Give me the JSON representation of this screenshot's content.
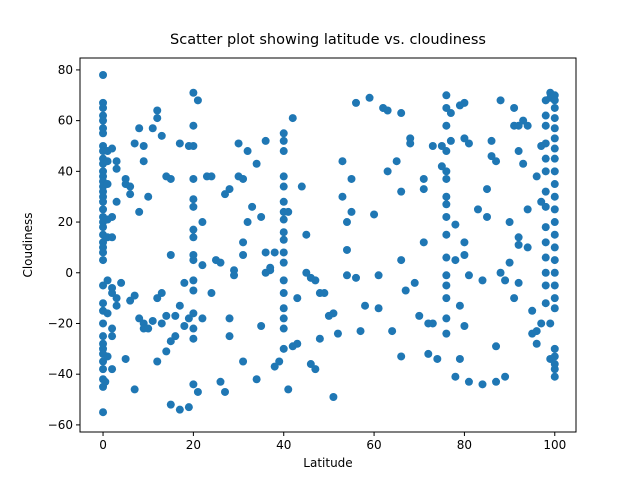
{
  "chart_data": {
    "type": "scatter",
    "title": "Scatter plot showing latitude vs. cloudiness",
    "x_label": "Latitude",
    "y_label": "Cloudiness",
    "color": "#1f77b4",
    "xlim": [
      -5.1,
      104.7
    ],
    "ylim": [
      -62.8,
      84.7
    ],
    "xticks": [
      0,
      20,
      40,
      60,
      80,
      100
    ],
    "yticks": [
      {
        "value": -60,
        "label": "−60"
      },
      {
        "value": -40,
        "label": "−40"
      },
      {
        "value": -20,
        "label": "−20"
      },
      0,
      20,
      40,
      60,
      80
    ],
    "x": [
      0,
      0,
      0,
      0,
      0,
      0,
      0,
      0,
      0,
      0,
      0,
      0,
      0,
      0,
      0,
      0,
      0,
      0,
      0,
      0,
      0,
      0,
      0,
      0,
      0,
      0,
      0,
      0,
      0,
      0,
      0,
      0,
      0,
      0,
      0,
      0,
      0,
      0,
      0,
      0,
      1,
      1,
      1,
      1,
      1,
      2,
      2,
      2,
      3,
      3,
      2,
      2,
      1,
      1,
      2,
      2,
      1,
      0.5,
      2,
      3,
      3,
      3,
      4,
      5,
      5,
      5,
      6,
      6,
      6,
      7,
      7,
      7,
      8,
      8,
      8,
      9,
      9,
      9,
      9,
      10,
      10,
      11,
      11,
      12,
      12,
      12,
      12,
      13,
      13,
      13,
      14,
      14,
      14,
      15,
      15,
      15,
      15,
      16,
      16,
      17,
      17,
      17,
      18,
      18,
      19,
      19,
      19,
      20,
      20,
      20,
      20,
      20,
      20,
      20,
      20,
      20,
      20,
      20,
      20,
      20,
      20,
      20,
      20,
      21,
      21,
      22,
      22,
      22,
      23,
      24,
      24,
      25,
      26,
      26,
      27,
      27,
      28,
      28,
      28,
      29,
      29,
      30,
      30,
      31,
      31,
      31,
      31,
      32,
      32,
      33,
      34,
      34,
      35,
      35,
      36,
      36,
      37,
      36,
      37,
      38,
      38,
      39,
      40,
      40,
      40,
      40,
      40,
      40,
      40,
      40,
      40,
      40,
      40,
      40,
      40,
      40,
      40,
      40,
      40,
      40,
      41,
      41,
      42,
      42,
      43,
      43,
      44,
      45,
      45,
      46,
      46,
      47,
      47,
      48,
      48,
      49,
      50,
      51,
      51,
      52,
      53,
      53,
      54,
      54,
      54,
      55,
      55,
      56,
      56,
      57,
      58,
      59,
      60,
      61,
      61,
      62,
      63,
      63,
      64,
      65,
      66,
      66,
      66,
      66,
      67,
      68,
      68,
      69,
      70,
      71,
      71,
      71,
      72,
      72,
      73,
      73,
      74,
      75,
      75,
      76,
      76,
      76,
      76,
      76,
      76,
      76,
      76,
      76,
      76,
      76,
      76,
      76,
      76,
      76,
      76,
      77,
      77,
      78,
      78,
      78,
      79,
      79,
      79,
      80,
      80,
      80,
      80,
      80,
      81,
      81,
      81,
      83,
      84,
      84,
      85,
      85,
      86,
      86,
      87,
      87,
      87,
      88,
      88,
      89,
      89,
      90,
      90,
      91,
      91,
      91,
      92,
      92,
      92,
      92,
      92,
      93,
      93,
      94,
      94,
      94,
      95,
      95,
      96,
      96,
      96,
      97,
      97,
      97,
      98,
      98,
      98,
      98,
      98,
      98,
      98,
      98,
      98,
      98,
      98,
      98,
      98,
      98,
      99,
      99,
      99,
      99,
      100,
      100,
      100,
      100,
      100,
      100,
      100,
      100,
      100,
      100,
      100,
      100,
      100,
      100,
      100,
      100,
      100,
      100,
      100,
      100,
      100,
      100,
      100,
      100,
      100
    ],
    "y": [
      78,
      67,
      65,
      62,
      60,
      57,
      55,
      50,
      48,
      45,
      43,
      40,
      38,
      36,
      34,
      32,
      30,
      28,
      25,
      22,
      20,
      18,
      15,
      12,
      10,
      8,
      5,
      -5,
      -12,
      -15,
      -20,
      -25,
      -28,
      -30,
      -32,
      -35,
      -38,
      -42,
      -45,
      -55,
      48,
      44,
      35,
      21,
      14,
      49,
      22,
      14,
      44,
      41,
      -8,
      -6,
      -3,
      -16,
      -22,
      -25,
      -33,
      -43,
      -38,
      -10,
      28,
      -13,
      -4,
      37,
      35,
      -34,
      34,
      31,
      -11,
      -46,
      51,
      -9,
      57,
      -18,
      24,
      -20,
      -22,
      50,
      44,
      -22,
      30,
      57,
      -19,
      64,
      61,
      -35,
      -10,
      54,
      -20,
      -8,
      38,
      -17,
      -31,
      37,
      7,
      -52,
      -27,
      -25,
      -17,
      51,
      -13,
      -54,
      -21,
      -4,
      50,
      -53,
      -18,
      71,
      58,
      50,
      37,
      29,
      26,
      17,
      14,
      7,
      5,
      -3,
      -7,
      -16,
      -22,
      -26,
      -44,
      68,
      -47,
      20,
      3,
      -18,
      38,
      38,
      -8,
      5,
      -43,
      4,
      -47,
      31,
      33,
      -18,
      -25,
      1,
      -1,
      51,
      38,
      -35,
      7,
      12,
      37,
      48,
      20,
      26,
      -42,
      43,
      -21,
      22,
      52,
      8,
      1,
      0,
      2,
      8,
      -37,
      -35,
      55,
      52,
      48,
      38,
      34,
      28,
      24,
      21,
      16,
      13,
      8,
      4,
      -3,
      -8,
      -14,
      -18,
      -22,
      -30,
      -46,
      24,
      -29,
      61,
      -28,
      -10,
      34,
      15,
      0,
      -2,
      -36,
      -38,
      -3,
      -8,
      -26,
      -8,
      -17,
      -49,
      -16,
      -24,
      44,
      30,
      20,
      9,
      -1,
      37,
      24,
      67,
      -2,
      -23,
      -13,
      69,
      23,
      -1,
      -14,
      65,
      64,
      40,
      -23,
      44,
      63,
      32,
      5,
      -33,
      -7,
      53,
      51,
      -4,
      -17,
      37,
      33,
      12,
      -20,
      -32,
      50,
      -20,
      -34,
      50,
      42,
      70,
      65,
      58,
      48,
      40,
      37,
      30,
      27,
      22,
      15,
      6,
      -1,
      -5,
      -10,
      -18,
      -24,
      63,
      52,
      -41,
      19,
      5,
      66,
      -13,
      -34,
      67,
      -21,
      53,
      12,
      7,
      51,
      -1,
      -43,
      25,
      -3,
      -44,
      33,
      22,
      52,
      46,
      -29,
      44,
      -43,
      68,
      0,
      -41,
      -3,
      20,
      4,
      58,
      65,
      -10,
      58,
      48,
      14,
      11,
      -4,
      60,
      43,
      58,
      25,
      10,
      -24,
      -15,
      -23,
      -28,
      38,
      50,
      28,
      -20,
      68,
      62,
      58,
      51,
      45,
      40,
      32,
      26,
      18,
      12,
      6,
      0,
      -5,
      -12,
      -34,
      -20,
      71,
      69,
      70,
      68,
      65,
      61,
      57,
      53,
      49,
      45,
      40,
      35,
      30,
      25,
      20,
      15,
      10,
      5,
      0,
      -5,
      -10,
      -14,
      -30,
      -33,
      -38,
      -41,
      -36
    ]
  }
}
